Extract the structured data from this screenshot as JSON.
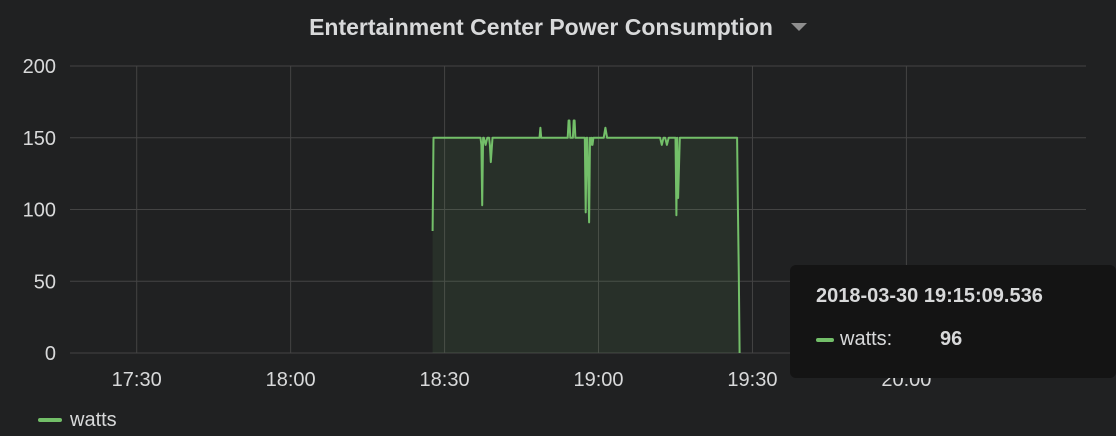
{
  "panel": {
    "title": "Entertainment Center Power Consumption"
  },
  "colors": {
    "series": "#73bf69",
    "background": "#202122",
    "grid": "#444444",
    "text": "#d8d9da"
  },
  "legend": {
    "placement": "bottom-left",
    "items": [
      {
        "label": "watts"
      }
    ]
  },
  "tooltip": {
    "time": "2018-03-30 19:15:09.536",
    "series": "watts:",
    "value": "96"
  },
  "chart_data": {
    "type": "area",
    "title": "Entertainment Center Power Consumption",
    "xlabel": "",
    "ylabel": "",
    "grid": true,
    "legend": "bottom-left",
    "xlim": [
      "17:17",
      "20:35"
    ],
    "ylim": [
      0,
      200
    ],
    "x_ticks": [
      "17:30",
      "18:00",
      "18:30",
      "19:00",
      "19:30",
      "20:00"
    ],
    "y_ticks": [
      "200",
      "150",
      "100",
      "50",
      "0"
    ],
    "series": [
      {
        "name": "watts",
        "x": [
          "18:27:40",
          "18:27:50",
          "18:28:00",
          "18:37:00",
          "18:37:10",
          "18:37:20",
          "18:37:30",
          "18:37:40",
          "18:38:00",
          "18:38:20",
          "18:38:40",
          "18:38:50",
          "18:39:00",
          "18:39:20",
          "18:39:40",
          "18:39:50",
          "18:40:00",
          "18:48:30",
          "18:48:40",
          "18:48:50",
          "18:49:00",
          "18:54:00",
          "18:54:10",
          "18:54:20",
          "18:54:30",
          "18:55:00",
          "18:55:10",
          "18:55:20",
          "18:55:30",
          "18:57:20",
          "18:57:30",
          "18:57:40",
          "18:57:50",
          "18:58:10",
          "18:58:20",
          "18:58:30",
          "18:58:40",
          "18:58:50",
          "18:59:00",
          "18:59:20",
          "18:59:40",
          "19:00:00",
          "19:01:00",
          "19:01:20",
          "19:01:40",
          "19:02:00",
          "19:12:00",
          "19:12:20",
          "19:12:40",
          "19:13:00",
          "19:13:20",
          "19:13:40",
          "19:14:00",
          "19:15:00",
          "19:15:10",
          "19:15:20",
          "19:15:30",
          "19:15:50",
          "19:16:00",
          "19:16:10",
          "19:16:20",
          "19:16:40",
          "19:27:00",
          "19:27:10",
          "19:27:20",
          "19:27:30"
        ],
        "values": [
          85,
          150,
          150,
          150,
          145,
          103,
          150,
          150,
          145,
          150,
          150,
          145,
          133,
          150,
          150,
          150,
          150,
          150,
          157,
          150,
          150,
          150,
          162,
          162,
          150,
          150,
          162,
          162,
          150,
          150,
          98,
          150,
          150,
          91,
          150,
          145,
          150,
          145,
          150,
          150,
          150,
          150,
          150,
          157,
          150,
          150,
          150,
          145,
          150,
          150,
          145,
          150,
          150,
          150,
          96,
          150,
          108,
          150,
          150,
          150,
          150,
          150,
          150,
          102,
          55,
          0
        ]
      }
    ]
  }
}
